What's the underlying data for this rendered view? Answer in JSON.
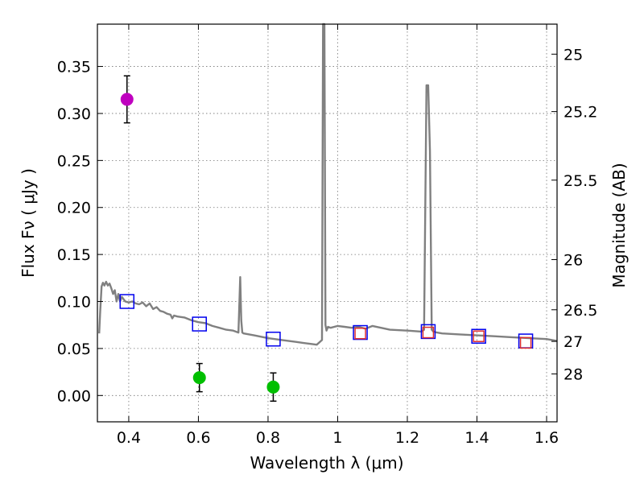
{
  "chart_data": {
    "type": "scatter",
    "title": "",
    "xlabel": "Wavelength  λ (μm)",
    "ylabel": "Flux  Fν  ( μJy )",
    "y2label": "Magnitude (AB)",
    "xlim": [
      0.31,
      1.63
    ],
    "ylim": [
      -0.028,
      0.395
    ],
    "grid": true,
    "x_ticks": [
      0.4,
      0.6,
      0.8,
      1.0,
      1.2,
      1.4,
      1.6
    ],
    "x_tick_labels": [
      "0.4",
      "0.6",
      "0.8",
      "1",
      "1.2",
      "1.4",
      "1.6"
    ],
    "y_ticks": [
      0.0,
      0.05,
      0.1,
      0.15,
      0.2,
      0.25,
      0.3,
      0.35
    ],
    "y_tick_labels": [
      "0.00",
      "0.05",
      "0.10",
      "0.15",
      "0.20",
      "0.25",
      "0.30",
      "0.35"
    ],
    "y2_ticks": [
      25,
      25.2,
      25.5,
      26,
      26.5,
      27,
      28
    ],
    "y2_tick_labels": [
      "25",
      "25.2",
      "25.5",
      "26",
      "26.5",
      "27",
      "28"
    ],
    "series": [
      {
        "name": "model spectrum",
        "kind": "line",
        "color": "#808080",
        "x": [
          0.315,
          0.318,
          0.322,
          0.326,
          0.33,
          0.335,
          0.34,
          0.345,
          0.35,
          0.355,
          0.36,
          0.365,
          0.37,
          0.375,
          0.38,
          0.39,
          0.4,
          0.41,
          0.42,
          0.43,
          0.44,
          0.45,
          0.46,
          0.47,
          0.48,
          0.49,
          0.5,
          0.51,
          0.52,
          0.525,
          0.53,
          0.54,
          0.56,
          0.58,
          0.6,
          0.62,
          0.64,
          0.66,
          0.68,
          0.7,
          0.715,
          0.72,
          0.723,
          0.726,
          0.73,
          0.76,
          0.8,
          0.84,
          0.88,
          0.9,
          0.92,
          0.94,
          0.955,
          0.958,
          0.96,
          0.962,
          0.965,
          0.968,
          0.972,
          0.98,
          1.0,
          1.02,
          1.04,
          1.06,
          1.08,
          1.1,
          1.15,
          1.2,
          1.24,
          1.248,
          1.255,
          1.26,
          1.265,
          1.27,
          1.275,
          1.285,
          1.3,
          1.35,
          1.4,
          1.45,
          1.5,
          1.55,
          1.6,
          1.63
        ],
        "y": [
          0.066,
          0.09,
          0.116,
          0.12,
          0.117,
          0.121,
          0.117,
          0.119,
          0.114,
          0.108,
          0.112,
          0.1,
          0.108,
          0.1,
          0.105,
          0.1,
          0.099,
          0.1,
          0.098,
          0.097,
          0.099,
          0.095,
          0.098,
          0.092,
          0.094,
          0.09,
          0.089,
          0.087,
          0.086,
          0.082,
          0.085,
          0.084,
          0.083,
          0.08,
          0.078,
          0.077,
          0.074,
          0.072,
          0.07,
          0.069,
          0.067,
          0.126,
          0.08,
          0.067,
          0.066,
          0.064,
          0.061,
          0.059,
          0.057,
          0.056,
          0.055,
          0.054,
          0.059,
          0.395,
          0.395,
          0.395,
          0.075,
          0.069,
          0.073,
          0.072,
          0.074,
          0.073,
          0.072,
          0.073,
          0.071,
          0.074,
          0.07,
          0.069,
          0.068,
          0.07,
          0.33,
          0.33,
          0.26,
          0.07,
          0.068,
          0.067,
          0.066,
          0.065,
          0.064,
          0.063,
          0.062,
          0.061,
          0.06,
          0.058
        ]
      },
      {
        "name": "model photometry",
        "kind": "square-open",
        "color": "#0000ee",
        "x": [
          0.395,
          0.603,
          0.815,
          1.065,
          1.26,
          1.405,
          1.54
        ],
        "y": [
          0.1,
          0.076,
          0.06,
          0.067,
          0.068,
          0.063,
          0.058
        ]
      },
      {
        "name": "observed photometry box",
        "kind": "square-open-small",
        "color": "#e03030",
        "x": [
          1.065,
          1.26,
          1.405,
          1.54
        ],
        "y": [
          0.066,
          0.067,
          0.063,
          0.056
        ]
      },
      {
        "name": "detection",
        "kind": "circle",
        "color": "#bf00bf",
        "x": [
          0.395
        ],
        "y": [
          0.315
        ],
        "yerr": [
          0.025
        ]
      },
      {
        "name": "weak detections",
        "kind": "circle",
        "color": "#00bf00",
        "x": [
          0.603,
          0.815
        ],
        "y": [
          0.019,
          0.009
        ],
        "yerr": [
          0.015,
          0.015
        ]
      }
    ]
  }
}
